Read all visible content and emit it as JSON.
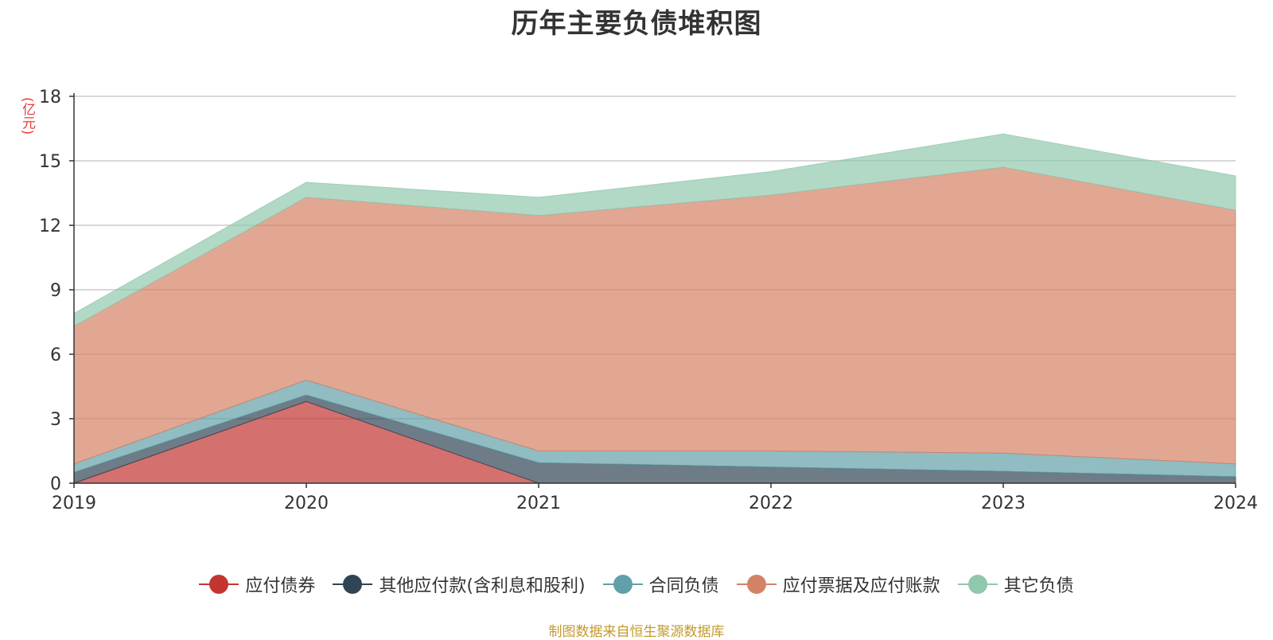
{
  "chart_data": {
    "type": "area",
    "stacked": true,
    "title": "历年主要负债堆积图",
    "ylabel": "(亿元)",
    "xlabel": "",
    "x": [
      "2019",
      "2020",
      "2021",
      "2022",
      "2023",
      "2024"
    ],
    "ylim": [
      0,
      18
    ],
    "yticks": [
      0,
      3,
      6,
      9,
      12,
      15,
      18
    ],
    "grid": true,
    "legend_position": "bottom",
    "series": [
      {
        "name": "应付债券",
        "color": "#c23531",
        "values": [
          0.0,
          3.8,
          0.0,
          0.0,
          0.0,
          0.0
        ]
      },
      {
        "name": "其他应付款(含利息和股利)",
        "color": "#2f4554",
        "values": [
          0.5,
          0.3,
          0.95,
          0.75,
          0.55,
          0.3
        ]
      },
      {
        "name": "合同负债",
        "color": "#61a0a8",
        "values": [
          0.4,
          0.7,
          0.55,
          0.75,
          0.85,
          0.6
        ]
      },
      {
        "name": "应付票据及应付账款",
        "color": "#d48265",
        "values": [
          6.4,
          8.5,
          10.95,
          11.9,
          13.3,
          11.8
        ]
      },
      {
        "name": "其它负债",
        "color": "#91c7ae",
        "values": [
          0.6,
          0.7,
          0.85,
          1.1,
          1.55,
          1.6
        ]
      }
    ]
  },
  "source_note": "制图数据来自恒生聚源数据库"
}
